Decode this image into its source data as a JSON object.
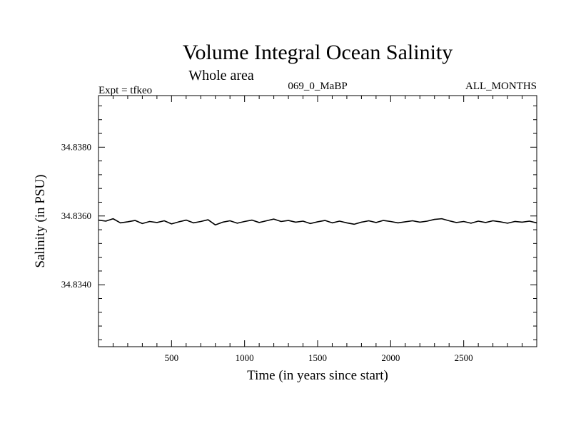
{
  "chart_data": {
    "type": "line",
    "title": "Volume Integral Ocean Salinity",
    "subtitle": "Whole area",
    "header_left": "Expt = tfkeo",
    "header_center": "069_0_MaBP",
    "header_right": "ALL_MONTHS",
    "xlabel": "Time (in years since start)",
    "ylabel": "Salinity (in PSU)",
    "xlim": [
      0,
      3000
    ],
    "ylim": [
      34.8322,
      34.8395
    ],
    "x_ticks": [
      500,
      1000,
      1500,
      2000,
      2500
    ],
    "x_tick_labels": [
      "500",
      "1000",
      "1500",
      "2000",
      "2500"
    ],
    "y_ticks": [
      34.834,
      34.836,
      34.838
    ],
    "y_tick_labels": [
      "34.8340",
      "34.8360",
      "34.8380"
    ],
    "grid": false,
    "series": [
      {
        "color": "#000000",
        "x": [
          0,
          50,
          100,
          150,
          200,
          250,
          300,
          350,
          400,
          450,
          500,
          550,
          600,
          650,
          700,
          750,
          800,
          850,
          900,
          950,
          1000,
          1050,
          1100,
          1150,
          1200,
          1250,
          1300,
          1350,
          1400,
          1450,
          1500,
          1550,
          1600,
          1650,
          1700,
          1750,
          1800,
          1850,
          1900,
          1950,
          2000,
          2050,
          2100,
          2150,
          2200,
          2250,
          2300,
          2350,
          2400,
          2450,
          2500,
          2550,
          2600,
          2650,
          2700,
          2750,
          2800,
          2850,
          2900,
          2950,
          3000
        ],
        "values": [
          34.83588,
          34.83585,
          34.83592,
          34.8358,
          34.83583,
          34.83587,
          34.83578,
          34.83584,
          34.83581,
          34.83586,
          34.83577,
          34.83583,
          34.83588,
          34.8358,
          34.83584,
          34.83589,
          34.83574,
          34.83582,
          34.83586,
          34.83579,
          34.83584,
          34.83588,
          34.83581,
          34.83586,
          34.83591,
          34.83584,
          34.83587,
          34.83582,
          34.83585,
          34.83578,
          34.83583,
          34.83587,
          34.8358,
          34.83585,
          34.8358,
          34.83576,
          34.83582,
          34.83586,
          34.83581,
          34.83587,
          34.83584,
          34.8358,
          34.83583,
          34.83586,
          34.83582,
          34.83585,
          34.8359,
          34.83592,
          34.83586,
          34.83581,
          34.83584,
          34.83579,
          34.83585,
          34.83581,
          34.83586,
          34.83583,
          34.83579,
          34.83584,
          34.83582,
          34.83585,
          34.8358
        ]
      }
    ]
  }
}
